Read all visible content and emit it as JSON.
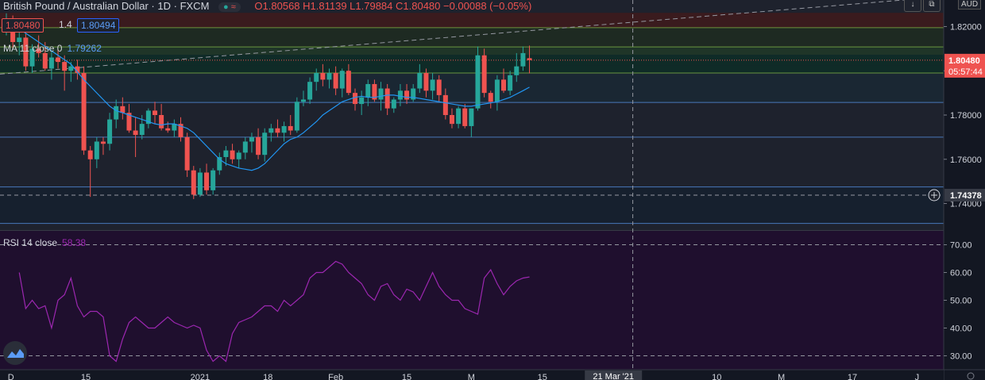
{
  "header": {
    "symbol": "British Pound / Australian Dollar",
    "interval": "1D",
    "exchange": "FXCM",
    "ohlc": "O1.80568 H1.81139 L1.79884 C1.80480 −0.00088 (−0.05%)",
    "dot_glyph": "●",
    "wave_glyph": "≈"
  },
  "quotes": {
    "bid": "1.80480",
    "spread": "1.4",
    "ask": "1.80494"
  },
  "indicators": {
    "ma_label": "MA 11 close 0",
    "ma_value": "1.79262",
    "rsi_label": "RSI 14 close",
    "rsi_value": "58.38"
  },
  "toolbar": {
    "currency": "AUD",
    "arrow_icon": "↓",
    "copy_icon": "⧉"
  },
  "colors": {
    "up": "#26a69a",
    "down": "#ef5350",
    "ma": "#2196f3",
    "rsi": "#9c27b0",
    "rsi_bg": "#1f0f2e"
  },
  "chart_data": {
    "type": "candlestick",
    "price_axis": {
      "ylim": [
        1.728,
        1.832
      ],
      "ticks": [
        "1.82000",
        "1.80000",
        "1.78000",
        "1.76000",
        "1.74000"
      ]
    },
    "last_price": {
      "value": 1.8048,
      "label": "1.80480",
      "countdown": "05:57:44"
    },
    "crosshair_price": {
      "value": 1.74378,
      "label": "1.74378"
    },
    "zones": [
      {
        "from": 1.8195,
        "to": 1.8262,
        "color": "#3a1b1e"
      },
      {
        "from": 1.8108,
        "to": 1.8195,
        "color": "#1e2a22"
      },
      {
        "from": 1.8072,
        "to": 1.8108,
        "color": "#1f3528"
      },
      {
        "from": 1.8025,
        "to": 1.8072,
        "color": "#0f2b27"
      },
      {
        "from": 1.799,
        "to": 1.8025,
        "color": "#0f2b27"
      },
      {
        "from": 1.7857,
        "to": 1.799,
        "color": "#1a2733"
      },
      {
        "from": 1.77,
        "to": 1.7857,
        "color": "#1e222d"
      },
      {
        "from": 1.7475,
        "to": 1.77,
        "color": "#1e222d"
      },
      {
        "from": 1.731,
        "to": 1.7475,
        "color": "#16202e"
      }
    ],
    "levels": [
      1.8195,
      1.8108,
      1.799,
      1.7857,
      1.77,
      1.7475,
      1.731
    ],
    "candles": [
      [
        1.82,
        1.826,
        1.816,
        1.823
      ],
      [
        1.823,
        1.825,
        1.81,
        1.813
      ],
      [
        1.813,
        1.818,
        1.807,
        1.815
      ],
      [
        1.815,
        1.817,
        1.8,
        1.802
      ],
      [
        1.802,
        1.812,
        1.799,
        1.81
      ],
      [
        1.81,
        1.816,
        1.806,
        1.808
      ],
      [
        1.808,
        1.813,
        1.8,
        1.801
      ],
      [
        1.801,
        1.809,
        1.796,
        1.806
      ],
      [
        1.806,
        1.81,
        1.801,
        1.804
      ],
      [
        1.804,
        1.807,
        1.791,
        1.8
      ],
      [
        1.8,
        1.804,
        1.795,
        1.802
      ],
      [
        1.802,
        1.805,
        1.796,
        1.799
      ],
      [
        1.799,
        1.802,
        1.762,
        1.764
      ],
      [
        1.764,
        1.766,
        1.743,
        1.76
      ],
      [
        1.76,
        1.77,
        1.756,
        1.768
      ],
      [
        1.768,
        1.77,
        1.762,
        1.767
      ],
      [
        1.767,
        1.781,
        1.764,
        1.778
      ],
      [
        1.778,
        1.787,
        1.774,
        1.784
      ],
      [
        1.784,
        1.788,
        1.778,
        1.781
      ],
      [
        1.781,
        1.785,
        1.772,
        1.773
      ],
      [
        1.773,
        1.779,
        1.761,
        1.771
      ],
      [
        1.771,
        1.78,
        1.769,
        1.776
      ],
      [
        1.776,
        1.783,
        1.774,
        1.782
      ],
      [
        1.782,
        1.786,
        1.776,
        1.78
      ],
      [
        1.78,
        1.785,
        1.773,
        1.774
      ],
      [
        1.774,
        1.777,
        1.772,
        1.773
      ],
      [
        1.773,
        1.778,
        1.77,
        1.776
      ],
      [
        1.776,
        1.779,
        1.768,
        1.77
      ],
      [
        1.77,
        1.772,
        1.752,
        1.755
      ],
      [
        1.755,
        1.757,
        1.742,
        1.744
      ],
      [
        1.744,
        1.756,
        1.743,
        1.754
      ],
      [
        1.754,
        1.758,
        1.744,
        1.746
      ],
      [
        1.746,
        1.756,
        1.744,
        1.755
      ],
      [
        1.755,
        1.763,
        1.753,
        1.761
      ],
      [
        1.761,
        1.766,
        1.757,
        1.764
      ],
      [
        1.764,
        1.767,
        1.758,
        1.76
      ],
      [
        1.76,
        1.764,
        1.756,
        1.763
      ],
      [
        1.763,
        1.77,
        1.76,
        1.768
      ],
      [
        1.768,
        1.772,
        1.763,
        1.77
      ],
      [
        1.77,
        1.774,
        1.76,
        1.762
      ],
      [
        1.762,
        1.774,
        1.759,
        1.772
      ],
      [
        1.772,
        1.776,
        1.768,
        1.774
      ],
      [
        1.774,
        1.778,
        1.77,
        1.772
      ],
      [
        1.772,
        1.777,
        1.768,
        1.775
      ],
      [
        1.775,
        1.78,
        1.771,
        1.773
      ],
      [
        1.773,
        1.788,
        1.772,
        1.786
      ],
      [
        1.786,
        1.791,
        1.784,
        1.787
      ],
      [
        1.787,
        1.797,
        1.785,
        1.795
      ],
      [
        1.795,
        1.801,
        1.791,
        1.799
      ],
      [
        1.799,
        1.803,
        1.793,
        1.796
      ],
      [
        1.796,
        1.801,
        1.792,
        1.799
      ],
      [
        1.799,
        1.802,
        1.789,
        1.792
      ],
      [
        1.792,
        1.801,
        1.788,
        1.8
      ],
      [
        1.8,
        1.803,
        1.789,
        1.79
      ],
      [
        1.79,
        1.792,
        1.782,
        1.785
      ],
      [
        1.785,
        1.791,
        1.78,
        1.788
      ],
      [
        1.788,
        1.796,
        1.784,
        1.794
      ],
      [
        1.794,
        1.796,
        1.786,
        1.787
      ],
      [
        1.787,
        1.795,
        1.782,
        1.792
      ],
      [
        1.792,
        1.794,
        1.78,
        1.783
      ],
      [
        1.783,
        1.788,
        1.781,
        1.787
      ],
      [
        1.787,
        1.794,
        1.784,
        1.791
      ],
      [
        1.791,
        1.794,
        1.785,
        1.787
      ],
      [
        1.787,
        1.794,
        1.786,
        1.792
      ],
      [
        1.792,
        1.803,
        1.79,
        1.799
      ],
      [
        1.799,
        1.801,
        1.788,
        1.791
      ],
      [
        1.791,
        1.799,
        1.787,
        1.796
      ],
      [
        1.796,
        1.798,
        1.786,
        1.789
      ],
      [
        1.789,
        1.792,
        1.778,
        1.78
      ],
      [
        1.78,
        1.783,
        1.774,
        1.776
      ],
      [
        1.776,
        1.784,
        1.774,
        1.783
      ],
      [
        1.783,
        1.785,
        1.774,
        1.775
      ],
      [
        1.775,
        1.783,
        1.77,
        1.783
      ],
      [
        1.783,
        1.811,
        1.782,
        1.807
      ],
      [
        1.807,
        1.81,
        1.788,
        1.79
      ],
      [
        1.79,
        1.791,
        1.783,
        1.786
      ],
      [
        1.786,
        1.798,
        1.782,
        1.796
      ],
      [
        1.796,
        1.801,
        1.79,
        1.791
      ],
      [
        1.791,
        1.8,
        1.789,
        1.798
      ],
      [
        1.798,
        1.808,
        1.795,
        1.802
      ],
      [
        1.802,
        1.811,
        1.8,
        1.808
      ],
      [
        1.8057,
        1.8114,
        1.7988,
        1.8048
      ]
    ],
    "ma": [
      1.819,
      1.817,
      1.815,
      1.813,
      1.811,
      1.809,
      1.807,
      1.805,
      1.803,
      1.7995,
      1.796,
      1.793,
      1.79,
      1.787,
      1.784,
      1.782,
      1.781,
      1.78,
      1.779,
      1.778,
      1.777,
      1.776,
      1.7755,
      1.776,
      1.776,
      1.775,
      1.774,
      1.772,
      1.769,
      1.766,
      1.763,
      1.76,
      1.758,
      1.757,
      1.756,
      1.7555,
      1.755,
      1.756,
      1.758,
      1.761,
      1.764,
      1.767,
      1.769,
      1.77,
      1.772,
      1.7745,
      1.777,
      1.78,
      1.782,
      1.784,
      1.786,
      1.787,
      1.788,
      1.7885,
      1.788,
      1.788,
      1.7885,
      1.789,
      1.789,
      1.7885,
      1.788,
      1.788,
      1.7875,
      1.787,
      1.7865,
      1.786,
      1.7855,
      1.785,
      1.7845,
      1.784,
      1.784,
      1.7845,
      1.785,
      1.7855,
      1.786,
      1.787,
      1.788,
      1.7895,
      1.791,
      1.7926
    ],
    "rsi_axis": {
      "ylim": [
        25,
        75
      ],
      "ticks": [
        "70.00",
        "60.00",
        "50.00",
        "40.00",
        "30.00"
      ],
      "bands": [
        70,
        30
      ]
    },
    "rsi": [
      60,
      47,
      50,
      47,
      48,
      40,
      50,
      52,
      58,
      48,
      44,
      46,
      46,
      44,
      30,
      28,
      36,
      42,
      44,
      42,
      40,
      40,
      42,
      44,
      42,
      41,
      40,
      41,
      40,
      32,
      28,
      30,
      28,
      38,
      42,
      43,
      44,
      46,
      48,
      48,
      46,
      50,
      48,
      50,
      52,
      58,
      60,
      60,
      62,
      64,
      63,
      60,
      58,
      56,
      52,
      50,
      55,
      56,
      52,
      50,
      54,
      53,
      50,
      55,
      60,
      55,
      52,
      50,
      50,
      47,
      46,
      45,
      58,
      61,
      56,
      52,
      55,
      57,
      58,
      58.4
    ],
    "x_ticks": [
      "D",
      "15",
      "2021",
      "18",
      "Feb",
      "15",
      "M",
      "15",
      "21 Mar '21",
      "10",
      "M",
      "17",
      "J"
    ],
    "x_tick_positions": [
      0.7,
      12.3,
      30,
      40.5,
      51,
      62,
      72,
      83,
      94,
      110,
      120,
      131,
      141
    ],
    "crosshair_index": 97
  }
}
